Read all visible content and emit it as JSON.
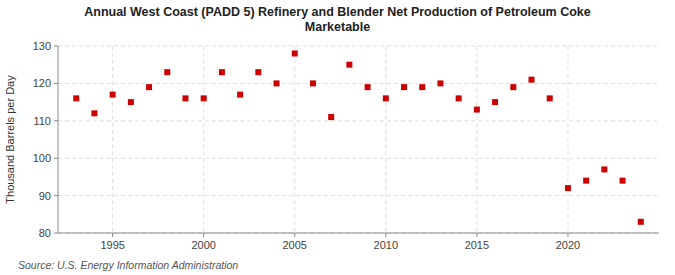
{
  "chart_data": {
    "type": "scatter",
    "title": "Annual West Coast (PADD 5) Refinery and Blender Net Production of Petroleum Coke\nMarketable",
    "y_label": "Thousand Barrels per Day",
    "annotations": [
      "Source: U.S. Energy Information Administration"
    ],
    "x": [
      1993,
      1994,
      1995,
      1996,
      1997,
      1998,
      1999,
      2000,
      2001,
      2002,
      2003,
      2004,
      2005,
      2006,
      2007,
      2008,
      2009,
      2010,
      2011,
      2012,
      2013,
      2014,
      2015,
      2016,
      2017,
      2018,
      2019,
      2020,
      2021,
      2022,
      2023,
      2024
    ],
    "values": [
      116,
      112,
      117,
      115,
      119,
      123,
      116,
      116,
      123,
      117,
      123,
      120,
      128,
      120,
      111,
      125,
      119,
      116,
      119,
      119,
      120,
      116,
      113,
      115,
      119,
      121,
      116,
      92,
      94,
      97,
      94,
      83
    ],
    "color": "#cc0000",
    "marker": "square",
    "xlim": [
      1992.0,
      2025.0
    ],
    "xticks": [
      1995,
      2000,
      2005,
      2010,
      2015,
      2020
    ],
    "ylim": [
      80,
      130
    ],
    "yticks": [
      80,
      90,
      100,
      110,
      120,
      130
    ],
    "grid": true
  }
}
